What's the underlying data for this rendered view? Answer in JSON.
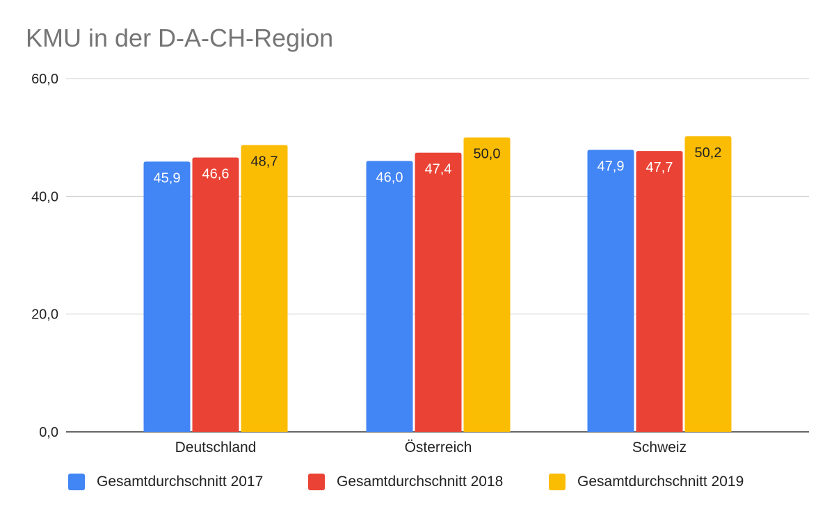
{
  "chart_data": {
    "type": "bar",
    "title": "KMU in der D-A-CH-Region",
    "xlabel": "",
    "ylabel": "",
    "categories": [
      "Deutschland",
      "Österreich",
      "Schweiz"
    ],
    "series": [
      {
        "name": "Gesamtdurchschnitt 2017",
        "color": "#4285f4",
        "values": [
          45.9,
          46.0,
          47.9
        ],
        "labels": [
          "45,9",
          "46,0",
          "47,9"
        ],
        "label_color": "#ffffff"
      },
      {
        "name": "Gesamtdurchschnitt 2018",
        "color": "#ea4335",
        "values": [
          46.6,
          47.4,
          47.7
        ],
        "labels": [
          "46,6",
          "47,4",
          "47,7"
        ],
        "label_color": "#ffffff"
      },
      {
        "name": "Gesamtdurchschnitt 2019",
        "color": "#fbbc04",
        "values": [
          48.7,
          50.0,
          50.2
        ],
        "labels": [
          "48,7",
          "50,0",
          "50,2"
        ],
        "label_color": "#222222"
      }
    ],
    "ylim": [
      0,
      60
    ],
    "yticks": [
      0,
      20,
      40,
      60
    ],
    "ytick_labels": [
      "0,0",
      "20,0",
      "40,0",
      "60,0"
    ],
    "grid": true,
    "legend_position": "bottom"
  }
}
